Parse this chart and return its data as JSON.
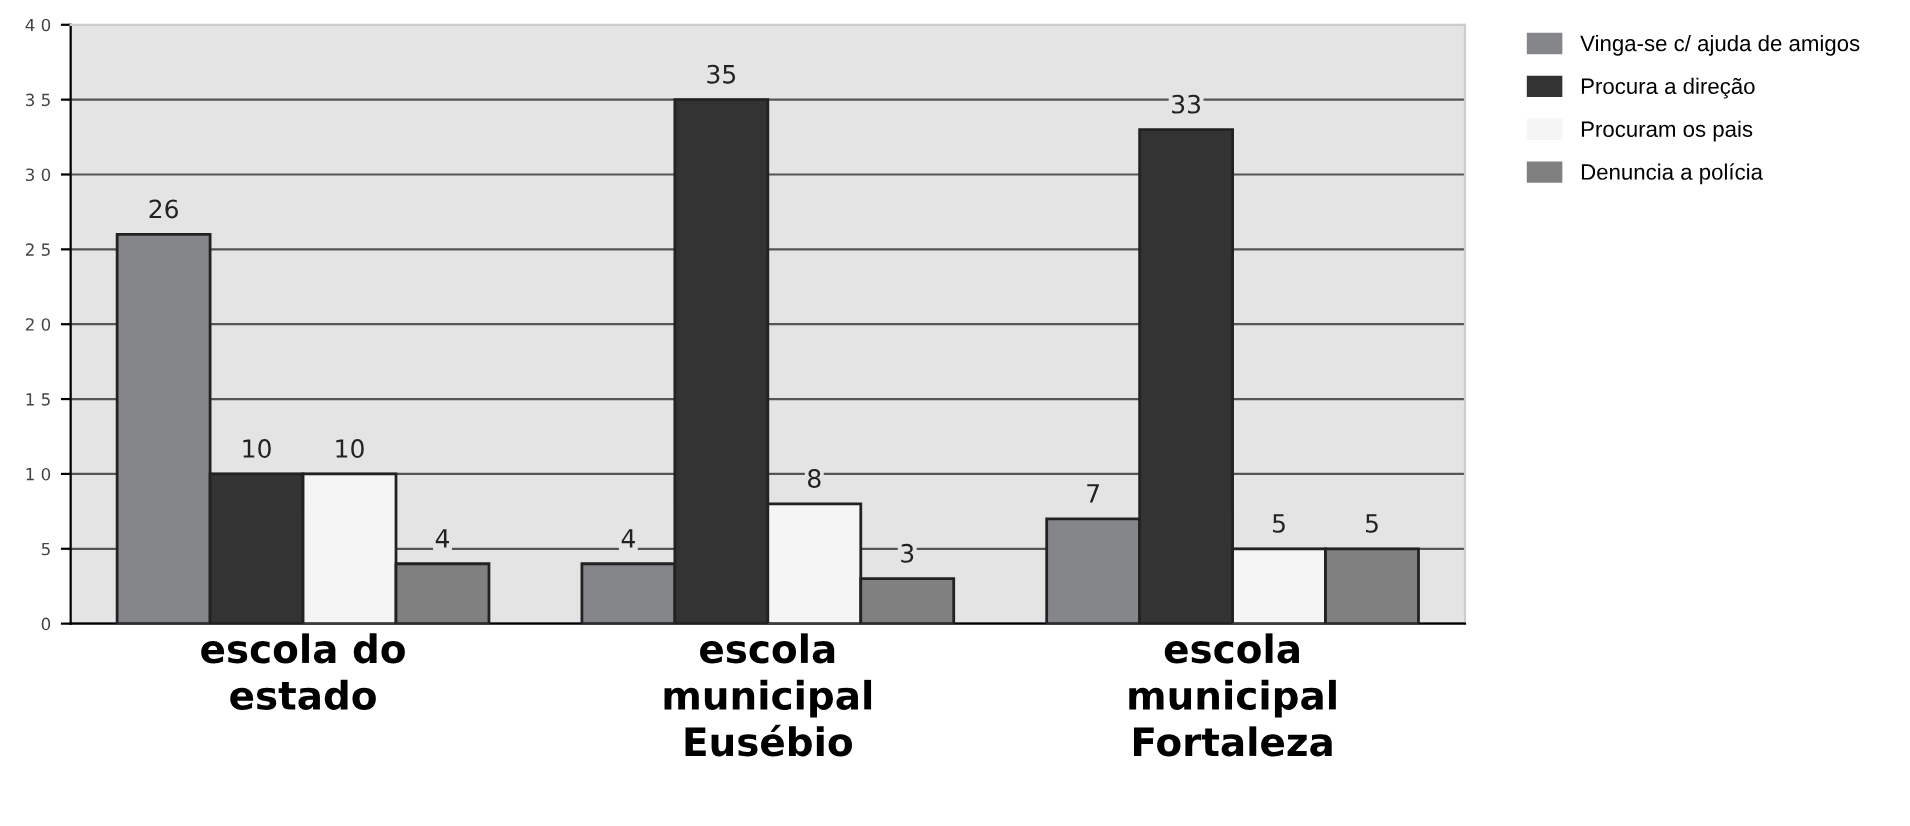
{
  "chart_data": {
    "type": "bar",
    "categories": [
      "escola do\nestado",
      "escola\nmunicipal\nEusébio",
      "escola\nmunicipal\nFortaleza"
    ],
    "series": [
      {
        "name": "Vinga-se c/ ajuda de amigos",
        "color": "#85868a",
        "values": [
          26,
          4,
          7
        ]
      },
      {
        "name": "Procura a direção",
        "color": "#333333",
        "values": [
          10,
          35,
          33
        ]
      },
      {
        "name": "Procuram os pais",
        "color": "#f5f5f5",
        "values": [
          10,
          8,
          5
        ]
      },
      {
        "name": "Denuncia a polícia",
        "color": "#808080",
        "values": [
          4,
          3,
          5
        ]
      }
    ],
    "ylim": [
      0,
      40
    ],
    "yticks": [
      0,
      5,
      {
        "value": 10,
        "label": "1 0"
      },
      {
        "value": 15,
        "label": "1 5"
      },
      {
        "value": 20,
        "label": "2 0"
      },
      {
        "value": 25,
        "label": "2 5"
      },
      {
        "value": 30,
        "label": "3 0"
      },
      {
        "value": 35,
        "label": "3 5"
      },
      {
        "value": 40,
        "label": "4 0"
      }
    ],
    "grid": "y",
    "legend": "top right",
    "data_labels": true
  }
}
